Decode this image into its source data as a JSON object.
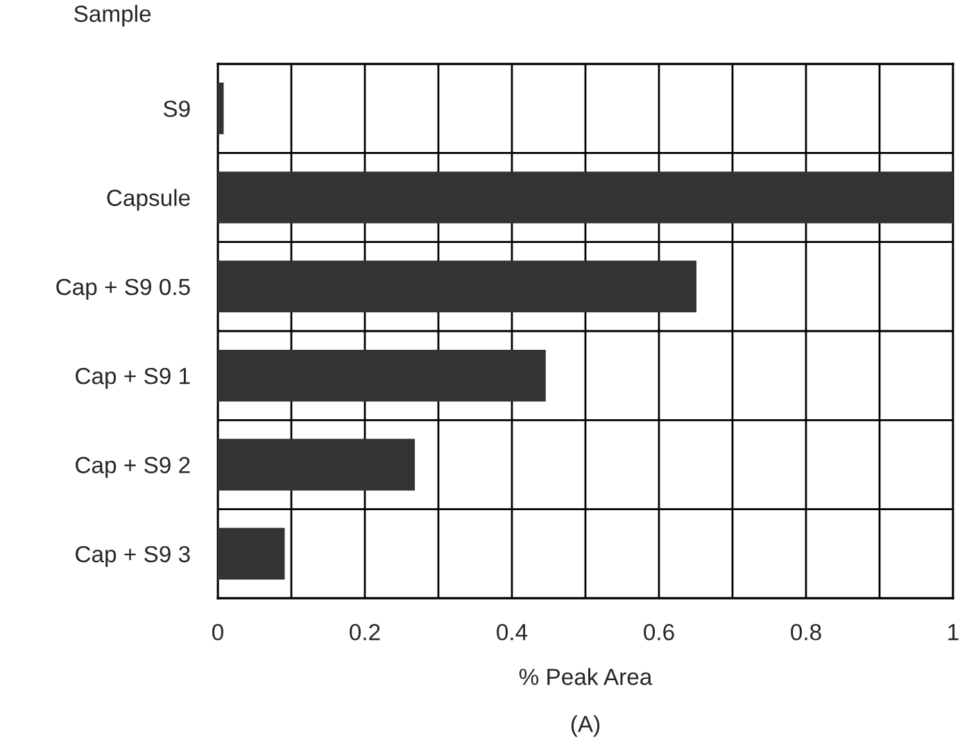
{
  "chart_data": {
    "type": "bar",
    "orientation": "horizontal",
    "ylabel": "Sample",
    "xlabel": "% Peak Area",
    "categories": [
      "S9",
      "Capsule",
      "Cap + S9 0.5",
      "Cap + S9 1",
      "Cap + S9 2",
      "Cap + S9 3"
    ],
    "values": [
      0.008,
      1.0,
      0.651,
      0.446,
      0.268,
      0.091
    ],
    "color": "#333333",
    "xlim": [
      0,
      1
    ],
    "xticks": [
      0,
      {
        "value": 0.1,
        "label": null
      },
      0.2,
      {
        "value": 0.3,
        "label": null
      },
      0.4,
      {
        "value": 0.5,
        "label": null
      },
      0.6,
      {
        "value": 0.7,
        "label": null
      },
      0.8,
      {
        "value": 0.9,
        "label": null
      },
      1
    ],
    "grid": true,
    "legend": false,
    "annotations": [
      "(A)"
    ]
  }
}
